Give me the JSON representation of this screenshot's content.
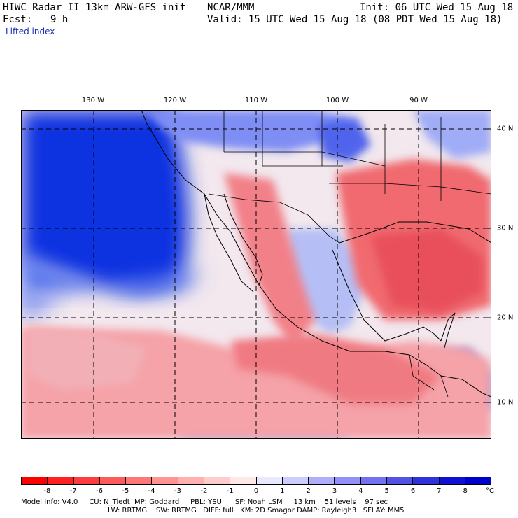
{
  "header": {
    "title": "HIWC Radar II 13km ARW-GFS init",
    "center": "NCAR/MMM",
    "init": "Init: 06 UTC Wed 15 Aug 18",
    "fcst_label": "Fcst:",
    "fcst_value": "9 h",
    "valid": "Valid: 15 UTC Wed 15 Aug 18 (08 PDT Wed 15 Aug 18)",
    "field": "Lifted index"
  },
  "map": {
    "lon_labels": [
      "130 W",
      "120 W",
      "110 W",
      "100 W",
      "90 W"
    ],
    "lat_labels": [
      "40 N",
      "30 N",
      "20 N",
      "10 N"
    ],
    "grid": "dashed"
  },
  "colorbar": {
    "unit": "°C",
    "ticks": [
      "-8",
      "-7",
      "-6",
      "-5",
      "-4",
      "-3",
      "-2",
      "-1",
      "0",
      "1",
      "2",
      "3",
      "4",
      "5",
      "6",
      "7",
      "8"
    ],
    "colors": [
      "#ff0000",
      "#ff2020",
      "#ff3c3c",
      "#ff5a5a",
      "#ff7676",
      "#ff9292",
      "#ffb0b0",
      "#ffcccc",
      "#ffe8e8",
      "#e8e8ff",
      "#ccccff",
      "#aeaefc",
      "#9090f6",
      "#7272ee",
      "#5252e6",
      "#3030dc",
      "#1010d4",
      "#0000cc"
    ]
  },
  "footer": {
    "line1": "Model Info: V4.0     CU: N_Tiedt  MP: Goddard     PBL: YSU      SF: Noah LSM     13 km    51 levels    97 sec",
    "line2": "LW: RRTMG    SW: RRTMG   DIFF: full   KM: 2D Smagor DAMP: Rayleigh3   SFLAY: MM5"
  }
}
